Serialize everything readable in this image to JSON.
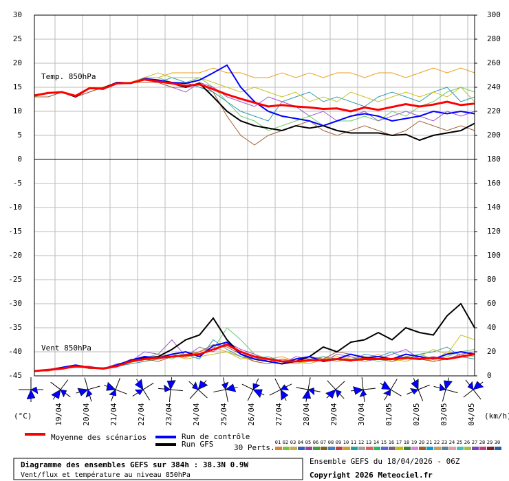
{
  "chart_data": [
    {
      "type": "line",
      "title": "Temp. 850hPa",
      "ylabel": "(°C)",
      "x": [
        0,
        12,
        24,
        36,
        48,
        60,
        72,
        84,
        96,
        108,
        120,
        132,
        144,
        156,
        168,
        180,
        192,
        204,
        216,
        228,
        240,
        252,
        264,
        276,
        288,
        300,
        312,
        324,
        336,
        348,
        360,
        372,
        384
      ],
      "xlim": [
        0,
        384
      ],
      "xticks": [
        {
          "value": 18,
          "label": "19/04"
        },
        {
          "value": 42,
          "label": "20/04"
        },
        {
          "value": 66,
          "label": "21/04"
        },
        {
          "value": 90,
          "label": "22/04"
        },
        {
          "value": 114,
          "label": "23/04"
        },
        {
          "value": 138,
          "label": "24/04"
        },
        {
          "value": 162,
          "label": "25/04"
        },
        {
          "value": 186,
          "label": "26/04"
        },
        {
          "value": 210,
          "label": "27/04"
        },
        {
          "value": 234,
          "label": "28/04"
        },
        {
          "value": 258,
          "label": "29/04"
        },
        {
          "value": 282,
          "label": "30/04"
        },
        {
          "value": 306,
          "label": "01/05"
        },
        {
          "value": 330,
          "label": "02/05"
        },
        {
          "value": 354,
          "label": "03/05"
        },
        {
          "value": 378,
          "label": "04/05"
        }
      ],
      "ylim": [
        0,
        30
      ],
      "yticks": [
        0,
        5,
        10,
        15,
        20,
        25,
        30
      ],
      "y2lim": [
        180,
        300
      ],
      "y2ticks": [
        180,
        200,
        220,
        240,
        260,
        280,
        300
      ],
      "grid": true,
      "series": [
        {
          "color": "#66cc66",
          "values": [
            13,
            14,
            14,
            13,
            15,
            15,
            16,
            16,
            17,
            17,
            16,
            16,
            17,
            15,
            12,
            9,
            8,
            6,
            7,
            8,
            9,
            7,
            8,
            8,
            9,
            8,
            10,
            9,
            11,
            12,
            14,
            15,
            14
          ]
        },
        {
          "color": "#e8a020",
          "values": [
            13,
            14,
            14,
            13,
            15,
            15,
            16,
            16,
            17,
            17,
            18,
            18,
            18,
            19,
            18,
            18,
            17,
            17,
            18,
            17,
            18,
            17,
            18,
            18,
            17,
            18,
            18,
            17,
            18,
            19,
            18,
            19,
            18
          ]
        },
        {
          "color": "#a050d0",
          "values": [
            13,
            13,
            14,
            13,
            14,
            15,
            16,
            16,
            16,
            16,
            15,
            14,
            16,
            15,
            13,
            12,
            11,
            13,
            12,
            11,
            9,
            10,
            8,
            9,
            10,
            8,
            9,
            10,
            9,
            8,
            10,
            9,
            10
          ]
        },
        {
          "color": "#2a9ab0",
          "values": [
            13,
            14,
            14,
            13,
            15,
            15,
            16,
            16,
            17,
            16,
            17,
            16,
            15,
            14,
            12,
            10,
            9,
            8,
            12,
            13,
            14,
            12,
            13,
            12,
            11,
            13,
            14,
            13,
            12,
            14,
            15,
            12,
            13
          ]
        },
        {
          "color": "#c8c020",
          "values": [
            13,
            14,
            14,
            13,
            15,
            15,
            16,
            16,
            17,
            18,
            17,
            17,
            17,
            16,
            15,
            14,
            15,
            14,
            13,
            14,
            12,
            13,
            12,
            14,
            13,
            12,
            13,
            14,
            13,
            14,
            13,
            15,
            12
          ]
        },
        {
          "color": "#a06030",
          "values": [
            13,
            13,
            14,
            13,
            14,
            15,
            16,
            16,
            16,
            16,
            15,
            15,
            16,
            14,
            9,
            5,
            3,
            5,
            6,
            7,
            8,
            6,
            5,
            6,
            7,
            6,
            5,
            6,
            8,
            7,
            6,
            7,
            6
          ]
        },
        {
          "name": "Run GFS",
          "color": "#000000",
          "values": [
            13.3,
            13.8,
            14,
            13,
            14.8,
            14.8,
            16,
            15.9,
            16.6,
            16.3,
            15.8,
            15,
            15.8,
            13,
            10,
            8,
            7,
            6.5,
            6,
            7,
            6.5,
            7,
            6,
            5.5,
            5.5,
            5.5,
            5,
            5.2,
            4,
            5,
            5.5,
            6,
            7.5
          ]
        },
        {
          "name": "Run de contrôle",
          "color": "#0000ff",
          "values": [
            13.3,
            13.8,
            14,
            13.2,
            14.8,
            14.6,
            16,
            15.8,
            16.8,
            16.5,
            16,
            15.8,
            16.5,
            18,
            19.6,
            15,
            12,
            10,
            9,
            8.5,
            8,
            7,
            8,
            9,
            9.5,
            9,
            8,
            8.5,
            9,
            10,
            9.5,
            10,
            9.5
          ]
        },
        {
          "name": "Moyenne des scénarios",
          "color": "#ff0000",
          "values": [
            13.3,
            13.8,
            14,
            13.2,
            14.8,
            14.7,
            15.8,
            15.9,
            16.6,
            16.2,
            15.8,
            15.3,
            15.6,
            14.6,
            13.5,
            12.6,
            11.8,
            11,
            11.3,
            11,
            10.8,
            10.5,
            10.6,
            10,
            10.8,
            10.3,
            10.9,
            11.5,
            11,
            11.4,
            12,
            11.3,
            11.6
          ]
        }
      ]
    },
    {
      "type": "line",
      "title": "Vent 850hPa",
      "y2label": "(km/h)",
      "x": [
        0,
        12,
        24,
        36,
        48,
        60,
        72,
        84,
        96,
        108,
        120,
        132,
        144,
        156,
        168,
        180,
        192,
        204,
        216,
        228,
        240,
        252,
        264,
        276,
        288,
        300,
        312,
        324,
        336,
        348,
        360,
        372,
        384
      ],
      "xlim": [
        0,
        384
      ],
      "ylim": [
        -45,
        0
      ],
      "yticks": [
        -45,
        -40,
        -35,
        -30,
        -25,
        -20,
        -15,
        -10,
        -5
      ],
      "y2lim": [
        0,
        180
      ],
      "y2ticks": [
        0,
        20,
        40,
        60,
        80,
        100,
        120,
        140,
        160
      ],
      "grid": true,
      "series": [
        {
          "color": "#66cc66",
          "axis": "y2",
          "values": [
            4,
            5,
            6,
            8,
            7,
            6,
            9,
            12,
            15,
            18,
            14,
            20,
            18,
            22,
            40,
            30,
            18,
            14,
            12,
            10,
            14,
            16,
            12,
            14,
            15,
            12,
            14,
            16,
            18,
            14,
            16,
            20,
            22
          ]
        },
        {
          "color": "#e8a020",
          "axis": "y2",
          "values": [
            4,
            5,
            6,
            8,
            7,
            7,
            8,
            14,
            12,
            16,
            18,
            15,
            20,
            24,
            20,
            16,
            12,
            14,
            16,
            12,
            10,
            14,
            12,
            16,
            14,
            18,
            12,
            14,
            16,
            12,
            20,
            18,
            16
          ]
        },
        {
          "color": "#a050d0",
          "axis": "y2",
          "values": [
            4,
            5,
            7,
            8,
            8,
            6,
            10,
            12,
            20,
            18,
            30,
            16,
            24,
            20,
            28,
            22,
            18,
            12,
            10,
            16,
            14,
            12,
            18,
            16,
            12,
            14,
            18,
            22,
            14,
            16,
            14,
            18,
            20
          ]
        },
        {
          "color": "#2a9ab0",
          "axis": "y2",
          "values": [
            4,
            5,
            6,
            7,
            7,
            6,
            8,
            10,
            12,
            14,
            16,
            18,
            14,
            30,
            22,
            16,
            14,
            16,
            12,
            14,
            12,
            16,
            14,
            12,
            18,
            16,
            20,
            14,
            18,
            20,
            24,
            16,
            14
          ]
        },
        {
          "color": "#c8c020",
          "axis": "y2",
          "values": [
            4,
            5,
            6,
            8,
            7,
            6,
            8,
            11,
            14,
            16,
            18,
            14,
            16,
            18,
            20,
            14,
            16,
            12,
            14,
            10,
            12,
            14,
            16,
            14,
            12,
            16,
            14,
            12,
            16,
            22,
            18,
            34,
            30
          ]
        },
        {
          "color": "#a06030",
          "axis": "y2",
          "values": [
            4,
            4,
            6,
            8,
            6,
            6,
            8,
            12,
            14,
            12,
            16,
            18,
            20,
            26,
            24,
            18,
            12,
            10,
            14,
            12,
            16,
            14,
            20,
            18,
            16,
            14,
            12,
            16,
            14,
            12,
            14,
            16,
            18
          ]
        },
        {
          "name": "Run GFS",
          "color": "#000000",
          "axis": "y2",
          "values": [
            4,
            5,
            6,
            8,
            7,
            6,
            8,
            13,
            15,
            16,
            22,
            30,
            34,
            48,
            30,
            18,
            14,
            12,
            10,
            12,
            16,
            24,
            20,
            28,
            30,
            36,
            30,
            40,
            36,
            34,
            50,
            60,
            40
          ]
        },
        {
          "name": "Run de contrôle",
          "color": "#0000ff",
          "axis": "y2",
          "values": [
            4,
            5,
            7,
            9,
            7,
            6,
            9,
            13,
            16,
            15,
            18,
            20,
            16,
            25,
            28,
            18,
            14,
            12,
            10,
            14,
            16,
            12,
            14,
            18,
            15,
            16,
            14,
            18,
            16,
            14,
            18,
            20,
            18
          ]
        },
        {
          "name": "Moyenne des scénarios",
          "color": "#ff0000",
          "axis": "y2",
          "values": [
            4,
            5,
            6,
            8,
            7,
            6,
            8,
            12,
            14,
            15,
            16,
            17,
            18,
            22,
            26,
            20,
            16,
            14,
            12,
            12,
            13,
            13,
            14,
            13,
            14,
            14,
            14,
            15,
            14,
            15,
            14,
            16,
            18
          ]
        }
      ]
    }
  ],
  "perts": {
    "label": "30 Perts.",
    "codes": [
      "01",
      "02",
      "03",
      "04",
      "05",
      "06",
      "07",
      "08",
      "09",
      "10",
      "11",
      "12",
      "13",
      "14",
      "15",
      "16",
      "17",
      "18",
      "19",
      "20",
      "21",
      "22",
      "23",
      "24",
      "25",
      "26",
      "27",
      "28",
      "29",
      "30"
    ],
    "colors": [
      "#e08030",
      "#80c040",
      "#c8b040",
      "#3060c0",
      "#a040a0",
      "#40a040",
      "#806020",
      "#4080c0",
      "#c04040",
      "#d0a020",
      "#20a0a0",
      "#a0a0a0",
      "#e06060",
      "#20c060",
      "#6060e0",
      "#806080",
      "#c0c000",
      "#408040",
      "#e080e0",
      "#a06020",
      "#00a0e0",
      "#c0a060",
      "#6080a0",
      "#e0a0a0",
      "#40c0c0",
      "#a0c040",
      "#8040c0",
      "#c04080",
      "#802020",
      "#2060a0"
    ]
  },
  "footer": {
    "title": "Diagramme des ensembles GEFS sur 384h : 38.3N 0.9W",
    "subtitle": "Vent/flux et température au niveau 850hPa",
    "run": "Ensemble GEFS du 18/04/2026 - 06Z",
    "copyright": "Copyright 2026 Meteociel.fr"
  }
}
